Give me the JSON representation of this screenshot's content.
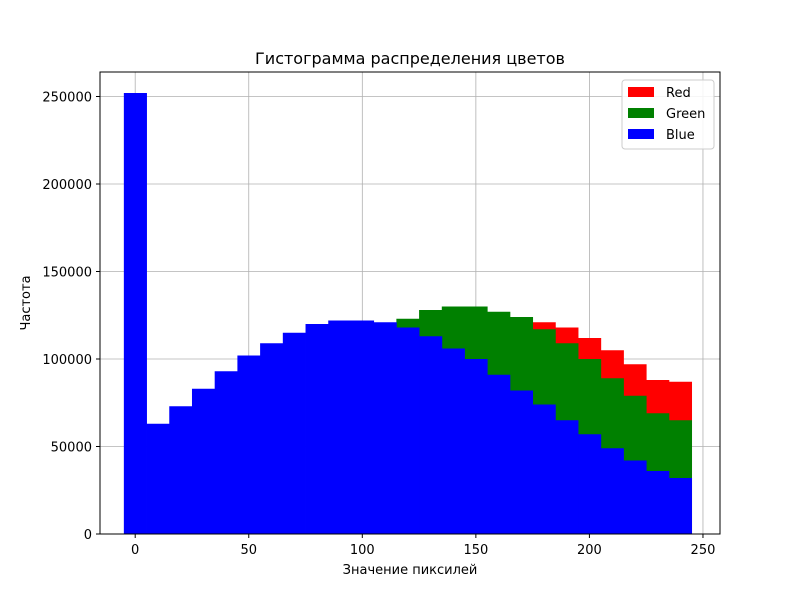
{
  "chart_data": {
    "type": "bar",
    "title": "Гистограмма распределения цветов",
    "xlabel": "Значение пиксилей",
    "ylabel": "Частота",
    "xlim": [
      -15.5,
      257.5
    ],
    "ylim": [
      0,
      264000
    ],
    "xticks": [
      0,
      50,
      100,
      150,
      200,
      250
    ],
    "yticks": [
      0,
      50000,
      100000,
      150000,
      200000,
      250000
    ],
    "grid": true,
    "legend_position": "top-right",
    "bin_width": 10,
    "bin_starts": [
      -5,
      5,
      15,
      25,
      35,
      45,
      55,
      65,
      75,
      85,
      95,
      105,
      115,
      125,
      135,
      145,
      155,
      165,
      175,
      185,
      195,
      205,
      215,
      225,
      235
    ],
    "draw_order": [
      "Red",
      "Green",
      "Blue"
    ],
    "series": [
      {
        "name": "Red",
        "color": "#ff0000",
        "values": [
          0,
          0,
          0,
          0,
          0,
          0,
          0,
          0,
          0,
          0,
          0,
          0,
          0,
          0,
          0,
          0,
          0,
          0,
          121000,
          118000,
          112000,
          105000,
          97000,
          88000,
          87000
        ]
      },
      {
        "name": "Green",
        "color": "#008000",
        "values": [
          0,
          0,
          0,
          0,
          0,
          0,
          0,
          0,
          0,
          0,
          0,
          0,
          123000,
          128000,
          130000,
          130000,
          127000,
          124000,
          117000,
          109000,
          100000,
          89000,
          79000,
          69000,
          65000
        ]
      },
      {
        "name": "Blue",
        "color": "#0000ff",
        "values": [
          252000,
          63000,
          73000,
          83000,
          93000,
          102000,
          109000,
          115000,
          120000,
          122000,
          122000,
          121000,
          118000,
          113000,
          106000,
          100000,
          91000,
          82000,
          74000,
          65000,
          57000,
          49000,
          42000,
          36000,
          32000
        ]
      }
    ]
  }
}
